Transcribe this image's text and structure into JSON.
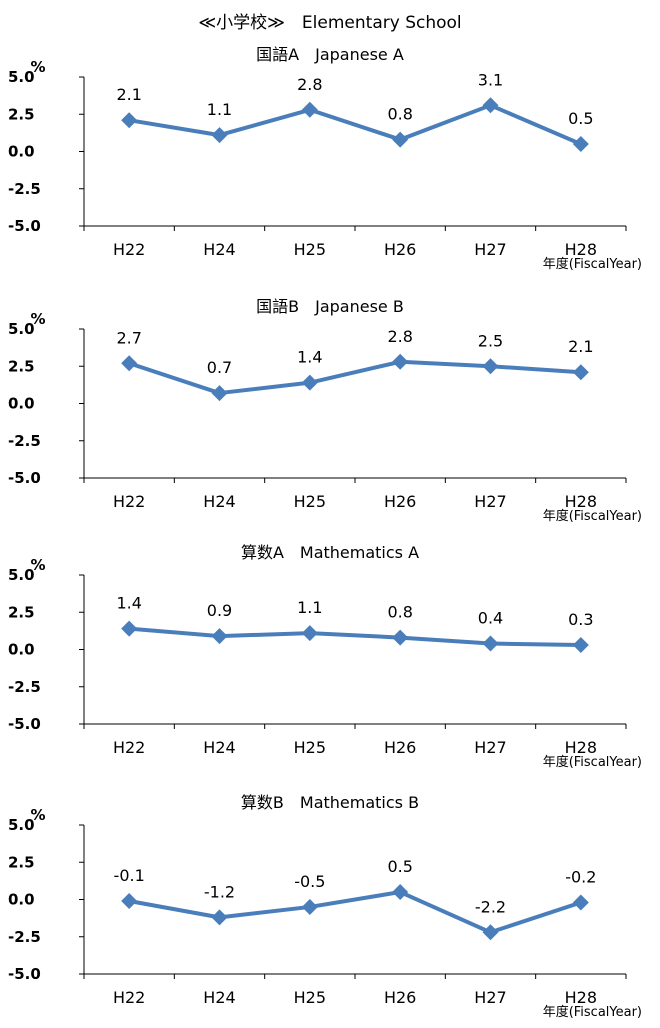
{
  "page_title": "≪小学校≫　Elementary School",
  "colors": {
    "series": "#4A7EBB",
    "axis": "#000000"
  },
  "chart_data": [
    {
      "type": "line",
      "title": "国語A　Japanese A",
      "categories": [
        "H22",
        "H24",
        "H25",
        "H26",
        "H27",
        "H28"
      ],
      "values": [
        2.1,
        1.1,
        2.8,
        0.8,
        3.1,
        0.5
      ],
      "data_labels": [
        "2.1",
        "1.1",
        "2.8",
        "0.8",
        "3.1",
        "0.5"
      ],
      "ylabel": "%",
      "xlabel": "年度(FiscalYear)",
      "ylim": [
        -5.0,
        5.0
      ],
      "yticks": [
        "5.0",
        "2.5",
        "0.0",
        "-2.5",
        "-5.0"
      ],
      "ytick_values": [
        5.0,
        2.5,
        0.0,
        -2.5,
        -5.0
      ],
      "marker": "diamond",
      "grid": false
    },
    {
      "type": "line",
      "title": "国語B　Japanese B",
      "categories": [
        "H22",
        "H24",
        "H25",
        "H26",
        "H27",
        "H28"
      ],
      "values": [
        2.7,
        0.7,
        1.4,
        2.8,
        2.5,
        2.1
      ],
      "data_labels": [
        "2.7",
        "0.7",
        "1.4",
        "2.8",
        "2.5",
        "2.1"
      ],
      "ylabel": "%",
      "xlabel": "年度(FiscalYear)",
      "ylim": [
        -5.0,
        5.0
      ],
      "yticks": [
        "5.0",
        "2.5",
        "0.0",
        "-2.5",
        "-5.0"
      ],
      "ytick_values": [
        5.0,
        2.5,
        0.0,
        -2.5,
        -5.0
      ],
      "marker": "diamond",
      "grid": false
    },
    {
      "type": "line",
      "title": "算数A　Mathematics A",
      "categories": [
        "H22",
        "H24",
        "H25",
        "H26",
        "H27",
        "H28"
      ],
      "values": [
        1.4,
        0.9,
        1.1,
        0.8,
        0.4,
        0.3
      ],
      "data_labels": [
        "1.4",
        "0.9",
        "1.1",
        "0.8",
        "0.4",
        "0.3"
      ],
      "ylabel": "%",
      "xlabel": "年度(FiscalYear)",
      "ylim": [
        -5.0,
        5.0
      ],
      "yticks": [
        "5.0",
        "2.5",
        "0.0",
        "-2.5",
        "-5.0"
      ],
      "ytick_values": [
        5.0,
        2.5,
        0.0,
        -2.5,
        -5.0
      ],
      "marker": "diamond",
      "grid": false
    },
    {
      "type": "line",
      "title": "算数B　Mathematics B",
      "categories": [
        "H22",
        "H24",
        "H25",
        "H26",
        "H27",
        "H28"
      ],
      "values": [
        -0.1,
        -1.2,
        -0.5,
        0.5,
        -2.2,
        -0.2
      ],
      "data_labels": [
        "-0.1",
        "-1.2",
        "-0.5",
        "0.5",
        "-2.2",
        "-0.2"
      ],
      "ylabel": "%",
      "xlabel": "年度(FiscalYear)",
      "ylim": [
        -5.0,
        5.0
      ],
      "yticks": [
        "5.0",
        "2.5",
        "0.0",
        "-2.5",
        "-5.0"
      ],
      "ytick_values": [
        5.0,
        2.5,
        0.0,
        -2.5,
        -5.0
      ],
      "marker": "diamond",
      "grid": false
    }
  ]
}
